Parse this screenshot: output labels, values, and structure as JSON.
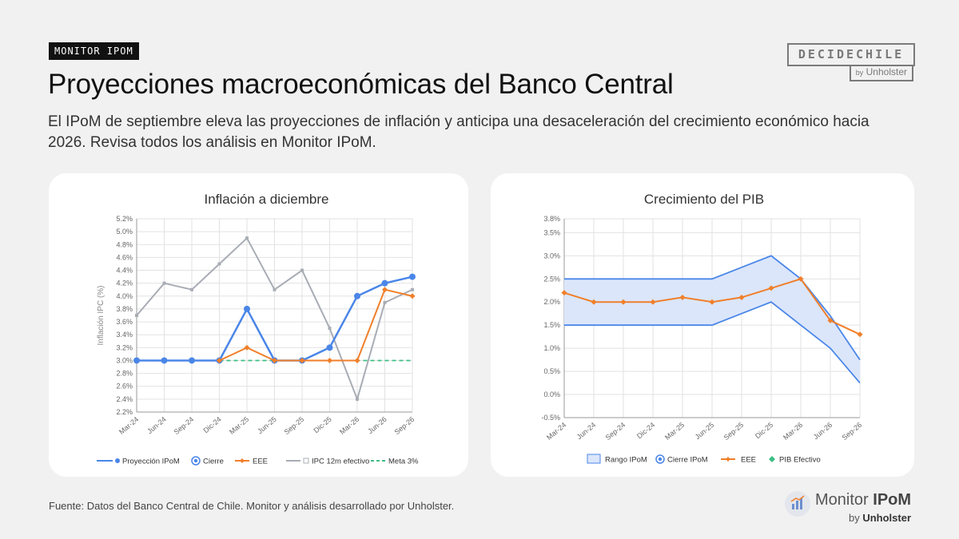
{
  "header": {
    "tag": "MONITOR IPOM",
    "title": "Proyecciones macroeconómicas del Banco Central",
    "subtitle": "El IPoM de septiembre eleva las proyecciones de inflación y anticipa una desaceleración del crecimiento económico hacia 2026. Revisa todos los análisis en Monitor IPoM."
  },
  "brand": {
    "main": "DECIDECHILE",
    "by": "by",
    "sub": "Unholster"
  },
  "footer": {
    "source": "Fuente: Datos del Banco Central de Chile. Monitor y análisis desarrollado por Unholster.",
    "logo_monitor": "Monitor",
    "logo_ipom": "IPoM",
    "logo_by": "by",
    "logo_unholster": "Unholster"
  },
  "colors": {
    "blue": "#4a86e8",
    "orange": "#f07f2a",
    "gray": "#a8acb4",
    "green": "#3cbf85",
    "band": "#dbe6fb",
    "grid": "#e2e2e2"
  },
  "chart_data": [
    {
      "type": "line",
      "title": "Inflación a diciembre",
      "ylabel": "Inflación IPC (%)",
      "ylim": [
        2.2,
        5.2
      ],
      "y_ticks": [
        "2.2%",
        "2.4%",
        "2.6%",
        "2.8%",
        "3.0%",
        "3.2%",
        "3.4%",
        "3.6%",
        "3.8%",
        "4.0%",
        "4.2%",
        "4.4%",
        "4.6%",
        "4.8%",
        "5.0%",
        "5.2%"
      ],
      "y_tick_values": [
        2.2,
        2.4,
        2.6,
        2.8,
        3.0,
        3.2,
        3.4,
        3.6,
        3.8,
        4.0,
        4.2,
        4.4,
        4.6,
        4.8,
        5.0,
        5.2
      ],
      "categories": [
        "Mar-24",
        "Jun-24",
        "Sep-24",
        "Dic-24",
        "Mar-25",
        "Jun-25",
        "Sep-25",
        "Dic-25",
        "Mar-26",
        "Jun-26",
        "Sep-26"
      ],
      "grid": true,
      "legend_position": "bottom",
      "legend": [
        "Proyección IPoM",
        "Cierre",
        "EEE",
        "IPC 12m efectivo",
        "Meta 3%"
      ],
      "series": [
        {
          "name": "IPC 12m efectivo",
          "values": [
            3.7,
            4.2,
            4.1,
            4.5,
            4.9,
            4.1,
            4.4,
            3.5,
            2.4,
            3.9,
            4.1
          ]
        },
        {
          "name": "Proyección IPoM",
          "values": [
            3.0,
            3.0,
            3.0,
            3.0,
            3.8,
            3.0,
            3.0,
            3.2,
            4.0,
            4.2,
            4.3
          ]
        },
        {
          "name": "EEE",
          "values": [
            null,
            null,
            null,
            3.0,
            3.2,
            3.0,
            3.0,
            3.0,
            3.0,
            4.1,
            4.0
          ]
        },
        {
          "name": "Meta 3%",
          "values": [
            null,
            null,
            null,
            3.0,
            3.0,
            3.0,
            3.0,
            3.0,
            3.0,
            3.0,
            3.0
          ]
        }
      ]
    },
    {
      "type": "area",
      "title": "Crecimiento del PIB",
      "ylim": [
        -0.5,
        3.8
      ],
      "y_ticks": [
        "-0.5%",
        "0.0%",
        "0.5%",
        "1.0%",
        "1.5%",
        "2.0%",
        "2.5%",
        "3.0%",
        "3.5%",
        "3.8%"
      ],
      "y_tick_values": [
        -0.5,
        0.0,
        0.5,
        1.0,
        1.5,
        2.0,
        2.5,
        3.0,
        3.5,
        3.8
      ],
      "categories": [
        "Mar-24",
        "Jun-24",
        "Sep-24",
        "Dic-24",
        "Mar-25",
        "Jun-25",
        "Sep-25",
        "Dic-25",
        "Mar-26",
        "Jun-26",
        "Sep-26"
      ],
      "grid": true,
      "legend_position": "bottom",
      "legend": [
        "Rango IPoM",
        "Cierre IPoM",
        "EEE",
        "PIB Efectivo"
      ],
      "range_upper": [
        2.5,
        2.5,
        2.5,
        2.5,
        2.5,
        2.5,
        2.75,
        3.0,
        2.5,
        1.7,
        0.75
      ],
      "range_lower": [
        1.5,
        1.5,
        1.5,
        1.5,
        1.5,
        1.5,
        1.75,
        2.0,
        1.5,
        1.0,
        0.25
      ],
      "series": [
        {
          "name": "EEE",
          "values": [
            2.2,
            2.0,
            2.0,
            2.0,
            2.1,
            2.0,
            2.1,
            2.3,
            2.5,
            1.6,
            1.3
          ]
        }
      ]
    }
  ]
}
